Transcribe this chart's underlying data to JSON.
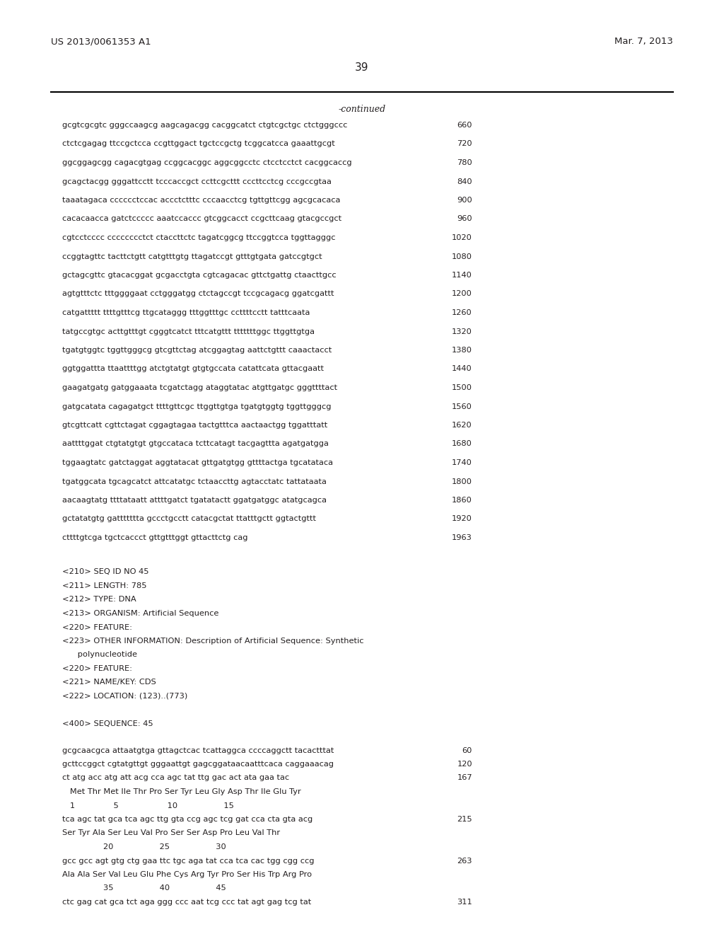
{
  "header_left": "US 2013/0061353 A1",
  "header_right": "Mar. 7, 2013",
  "page_number": "39",
  "continued_label": "-continued",
  "background_color": "#ffffff",
  "text_color": "#231f20",
  "sequence_lines": [
    [
      "gcgtcgcgtc gggccaagcg aagcagacgg cacggcatct ctgtcgctgc ctctgggccc",
      "660"
    ],
    [
      "ctctcgagag ttccgctcca ccgttggact tgctccgctg tcggcatcca gaaattgcgt",
      "720"
    ],
    [
      "ggcggagcgg cagacgtgag ccggcacggc aggcggcctc ctcctcctct cacggcaccg",
      "780"
    ],
    [
      "gcagctacgg gggattcctt tcccaccgct ccttcgcttt cccttcctcg cccgccgtaa",
      "840"
    ],
    [
      "taaatagaca cccccctccac accctctttc cccaacctcg tgttgttcgg agcgcacaca",
      "900"
    ],
    [
      "cacacaacca gatctccccc aaatccaccc gtcggcacct ccgcttcaag gtacgccgct",
      "960"
    ],
    [
      "cgtcctcccc cccccccctct ctaccttctc tagatcggcg ttccggtcca tggttagggc",
      "1020"
    ],
    [
      "ccggtagttc tacttctgtt catgtttgtg ttagatccgt gtttgtgata gatccgtgct",
      "1080"
    ],
    [
      "gctagcgttc gtacacggat gcgacctgta cgtcagacac gttctgattg ctaacttgcc",
      "1140"
    ],
    [
      "agtgtttctc tttggggaat cctgggatgg ctctagccgt tccgcagacg ggatcgattt",
      "1200"
    ],
    [
      "catgattttt ttttgtttcg ttgcataggg tttggtttgc ccttttcctt tatttcaata",
      "1260"
    ],
    [
      "tatgccgtgc acttgtttgt cgggtcatct tttcatgttt tttttttggc ttggttgtga",
      "1320"
    ],
    [
      "tgatgtggtc tggttgggcg gtcgttctag atcggagtag aattctgttt caaactacct",
      "1380"
    ],
    [
      "ggtggattta ttaattttgg atctgtatgt gtgtgccata catattcata gttacgaatt",
      "1440"
    ],
    [
      "gaagatgatg gatggaaata tcgatctagg ataggtatac atgttgatgc gggttttact",
      "1500"
    ],
    [
      "gatgcatata cagagatgct ttttgttcgc ttggttgtga tgatgtggtg tggttgggcg",
      "1560"
    ],
    [
      "gtcgttcatt cgttctagat cggagtagaa tactgtttca aactaactgg tggatttatt",
      "1620"
    ],
    [
      "aattttggat ctgtatgtgt gtgccataca tcttcatagt tacgagttta agatgatgga",
      "1680"
    ],
    [
      "tggaagtatc gatctaggat aggtatacat gttgatgtgg gttttactga tgcatataca",
      "1740"
    ],
    [
      "tgatggcata tgcagcatct attcatatgc tctaaccttg agtacctatc tattataata",
      "1800"
    ],
    [
      "aacaagtatg ttttataatt attttgatct tgatatactt ggatgatggc atatgcagca",
      "1860"
    ],
    [
      "gctatatgtg gattttttta gccctgcctt catacgctat ttatttgctt ggtactgttt",
      "1920"
    ],
    [
      "cttttgtcga tgctcaccct gttgtttggt gttacttctg cag",
      "1963"
    ]
  ],
  "metadata_lines": [
    "<210> SEQ ID NO 45",
    "<211> LENGTH: 785",
    "<212> TYPE: DNA",
    "<213> ORGANISM: Artificial Sequence",
    "<220> FEATURE:",
    "<223> OTHER INFORMATION: Description of Artificial Sequence: Synthetic",
    "      polynucleotide",
    "<220> FEATURE:",
    "<221> NAME/KEY: CDS",
    "<222> LOCATION: (123)..(773)",
    "",
    "<400> SEQUENCE: 45"
  ],
  "sequence_lines2": [
    [
      "gcgcaacgca attaatgtga gttagctcac tcattaggca ccccaggctt tacactttat",
      "60"
    ],
    [
      "gcttccggct cgtatgttgt gggaattgt gagcggataacaatttcaca caggaaacag",
      "120"
    ],
    [
      "ct atg acc atg att acg cca agc tat ttg gac act ata gaa tac",
      "167"
    ],
    [
      "   Met Thr Met Ile Thr Pro Ser Tyr Leu Gly Asp Thr Ile Glu Tyr",
      ""
    ],
    [
      "   1               5                   10                  15",
      ""
    ],
    [
      "tca agc tat gca tca agc ttg gta ccg agc tcg gat cca cta gta acg",
      "215"
    ],
    [
      "Ser Tyr Ala Ser Leu Val Pro Ser Ser Asp Pro Leu Val Thr",
      ""
    ],
    [
      "                20                  25                  30",
      ""
    ],
    [
      "gcc gcc agt gtg ctg gaa ttc tgc aga tat cca tca cac tgg cgg ccg",
      "263"
    ],
    [
      "Ala Ala Ser Val Leu Glu Phe Cys Arg Tyr Pro Ser His Trp Arg Pro",
      ""
    ],
    [
      "                35                  40                  45",
      ""
    ],
    [
      "ctc gag cat gca tct aga ggg ccc aat tcg ccc tat agt gag tcg tat",
      "311"
    ]
  ],
  "fig_width": 10.24,
  "fig_height": 13.2,
  "dpi": 100
}
